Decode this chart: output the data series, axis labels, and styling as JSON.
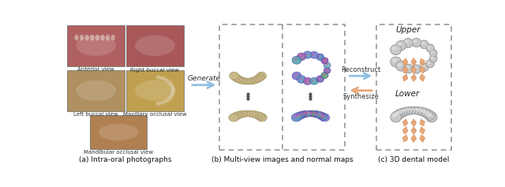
{
  "bg_color": "#ffffff",
  "fig_width": 6.4,
  "fig_height": 2.37,
  "dpi": 100,
  "caption_a": "(a) Intra-oral photographs",
  "caption_b": "(b) Multi-view images and normal maps",
  "caption_c": "(c) 3D dental model",
  "label_anterior": "Anterior view",
  "label_right_buccal": "Right buccal view",
  "label_left_buccal": "Left buccal view",
  "label_maxillary": "Maxillary occlusal view",
  "label_mandibular": "Mandibular occlusal view",
  "label_upper": "Upper",
  "label_lower": "Lower",
  "label_generate": "Generate",
  "label_reconstruct": "Reconstruct",
  "label_synthesize": "Synthesize",
  "photo_colors": [
    "#b06060",
    "#a85858",
    "#b09060",
    "#c0a050",
    "#b08050"
  ],
  "teeth_tan": "#c8b888",
  "teeth_tan_edge": "#a09060",
  "teeth_blue1": "#7070c8",
  "teeth_blue2": "#50a0b8",
  "teeth_pink": "#d060a0",
  "teeth_green": "#60b870",
  "arrow_blue": "#90c0e0",
  "arrow_orange": "#e8a878",
  "diamond_color": "#e8a878",
  "dashed_box_color": "#999999",
  "model_gray": "#c8c8c8",
  "model_dark": "#909090",
  "caption_fs": 6.5,
  "label_fs": 5.0,
  "arrow_label_fs": 6.5
}
